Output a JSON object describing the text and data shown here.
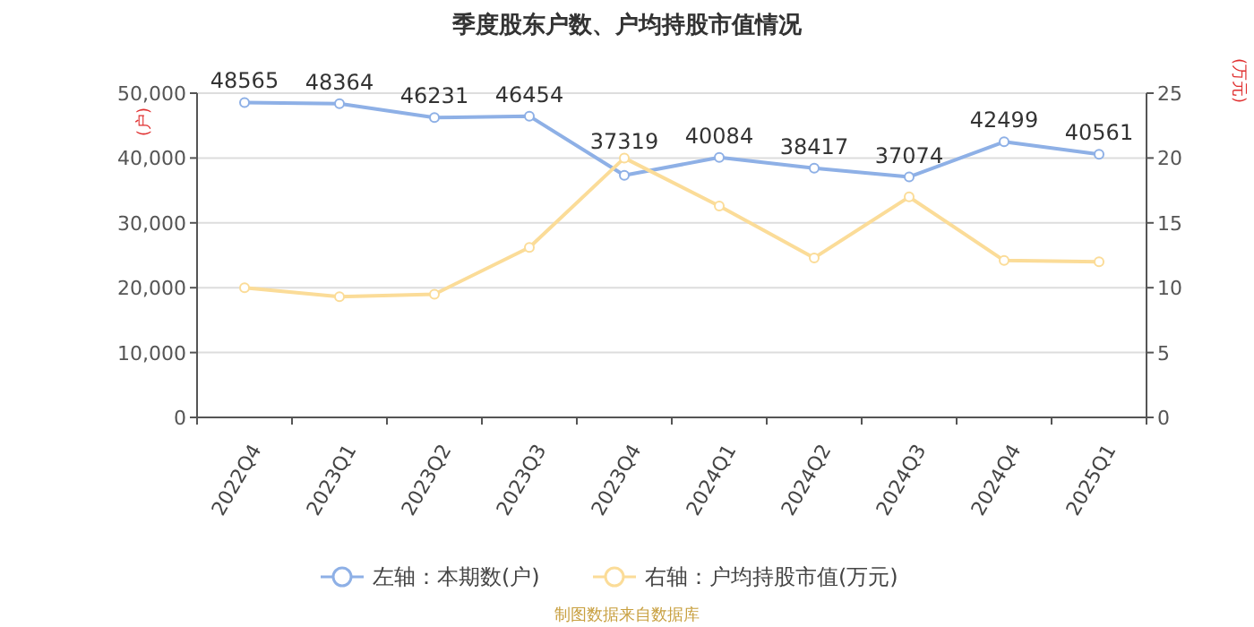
{
  "chart_data": {
    "type": "line",
    "title": "季度股东户数、户均持股市值情况",
    "ylabel": "(户)",
    "y2label": "(万元)",
    "categories": [
      "2022Q4",
      "2023Q1",
      "2023Q2",
      "2023Q3",
      "2023Q4",
      "2024Q1",
      "2024Q2",
      "2024Q3",
      "2024Q4",
      "2025Q1"
    ],
    "series": [
      {
        "name": "左轴：本期数(户)",
        "color": "#8eb0e6",
        "values": [
          48565,
          48364,
          46231,
          46454,
          37319,
          40084,
          38417,
          37074,
          42499,
          40561
        ],
        "data_labels": true
      },
      {
        "name": "右轴：户均持股市值(万元)",
        "color": "#fbdc98",
        "axis": "y2",
        "values": [
          10.0,
          9.3,
          9.5,
          13.1,
          20.0,
          16.3,
          12.3,
          17.0,
          12.1,
          12.0
        ]
      }
    ],
    "ylim": [
      0,
      50000
    ],
    "yticks": [
      {
        "value": 0,
        "label": "0"
      },
      {
        "value": 10000,
        "label": "10,000"
      },
      {
        "value": 20000,
        "label": "20,000"
      },
      {
        "value": 30000,
        "label": "30,000"
      },
      {
        "value": 40000,
        "label": "40,000"
      },
      {
        "value": 50000,
        "label": "50,000"
      }
    ],
    "y2lim": [
      0,
      25
    ],
    "y2ticks": [
      0,
      5,
      10,
      15,
      20,
      25
    ],
    "grid": "y",
    "legend": "bottom",
    "marker": "circle",
    "line_style": "solid",
    "annotations": [
      "制图数据来自数据库"
    ]
  }
}
